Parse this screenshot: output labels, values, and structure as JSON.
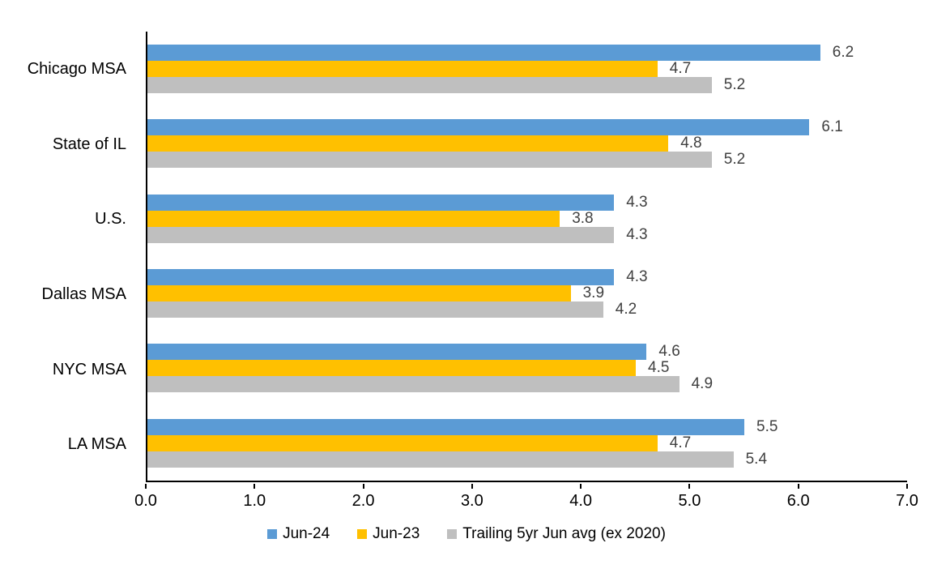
{
  "chart_data": {
    "type": "bar",
    "orientation": "horizontal",
    "title": "",
    "xlabel": "",
    "ylabel": "",
    "categories": [
      "Chicago MSA",
      "State of IL",
      "U.S.",
      "Dallas MSA",
      "NYC MSA",
      "LA MSA"
    ],
    "series": [
      {
        "name": "Jun-24",
        "color": "#5B9BD5",
        "values": [
          6.2,
          6.1,
          4.3,
          4.3,
          4.6,
          5.5
        ]
      },
      {
        "name": "Jun-23",
        "color": "#FFC000",
        "values": [
          4.7,
          4.8,
          3.8,
          3.9,
          4.5,
          4.7
        ]
      },
      {
        "name": "Trailing 5yr Jun avg (ex 2020)",
        "color": "#BFBFBF",
        "values": [
          5.2,
          5.2,
          4.3,
          4.2,
          4.9,
          5.4
        ]
      }
    ],
    "xlim": [
      0,
      7
    ],
    "x_ticks": [
      "0.0",
      "1.0",
      "2.0",
      "3.0",
      "4.0",
      "5.0",
      "6.0",
      "7.0"
    ],
    "value_label_decimals": 1,
    "data_label_color": "#404040",
    "axis_color": "#000000",
    "grid": false,
    "legend_position": "bottom"
  }
}
